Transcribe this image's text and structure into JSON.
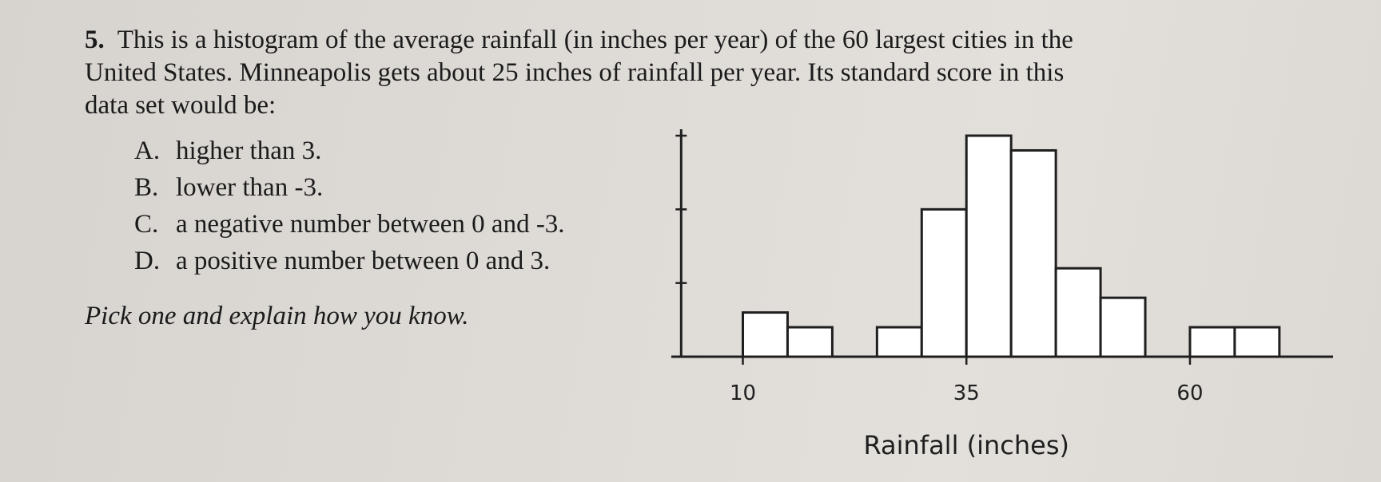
{
  "question": {
    "number": "5.",
    "lines": [
      "This is a histogram of the average rainfall (in inches per year) of the 60 largest cities in the",
      "United States.  Minneapolis gets about 25 inches of rainfall per year.  Its standard score in this",
      "data set would be:"
    ],
    "options": [
      {
        "letter": "A.",
        "text": "higher than 3."
      },
      {
        "letter": "B.",
        "text": "lower than -3."
      },
      {
        "letter": "C.",
        "text": "a negative number between 0 and -3."
      },
      {
        "letter": "D.",
        "text": "a positive number between 0 and 3."
      }
    ],
    "instruction": "Pick one and explain how you know."
  },
  "chart_data": {
    "type": "bar",
    "histogram": true,
    "bin_width": 5,
    "bins": [
      {
        "x0": 10,
        "x1": 15,
        "count": 3
      },
      {
        "x0": 15,
        "x1": 20,
        "count": 2
      },
      {
        "x0": 20,
        "x1": 25,
        "count": 0
      },
      {
        "x0": 25,
        "x1": 30,
        "count": 2
      },
      {
        "x0": 30,
        "x1": 35,
        "count": 10
      },
      {
        "x0": 35,
        "x1": 40,
        "count": 15
      },
      {
        "x0": 40,
        "x1": 45,
        "count": 14
      },
      {
        "x0": 45,
        "x1": 50,
        "count": 6
      },
      {
        "x0": 50,
        "x1": 55,
        "count": 4
      },
      {
        "x0": 55,
        "x1": 60,
        "count": 0
      },
      {
        "x0": 60,
        "x1": 65,
        "count": 2
      },
      {
        "x0": 65,
        "x1": 70,
        "count": 2
      }
    ],
    "xlabel": "Rainfall (inches)",
    "ylabel": "",
    "x_ticks": [
      10,
      35,
      60
    ],
    "y_ticks": [
      5,
      10,
      15
    ],
    "xlim": [
      2,
      76
    ],
    "ylim": [
      0,
      15
    ],
    "grid": false,
    "bar_fill": "#ffffff",
    "line_color": "#1f1f1f"
  }
}
